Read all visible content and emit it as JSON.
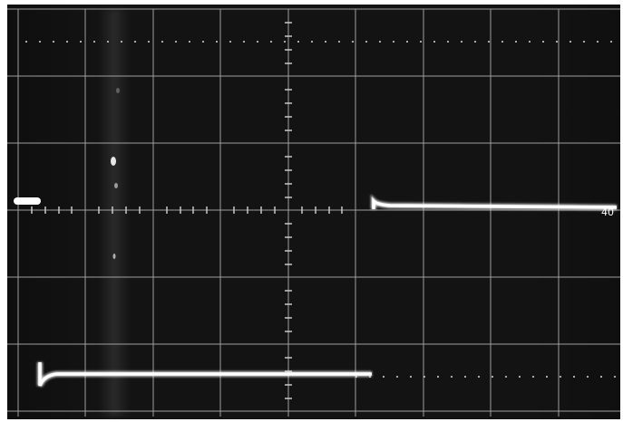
{
  "photo": {
    "subject": "oscilloscope-screen-trace",
    "screen_color": "#131313",
    "grid_color": "#b8b8b8",
    "trace_color": "#ffffff"
  },
  "screen": {
    "graticule_columns": 9,
    "graticule_rows": 6,
    "right_edge_marker": "40"
  }
}
